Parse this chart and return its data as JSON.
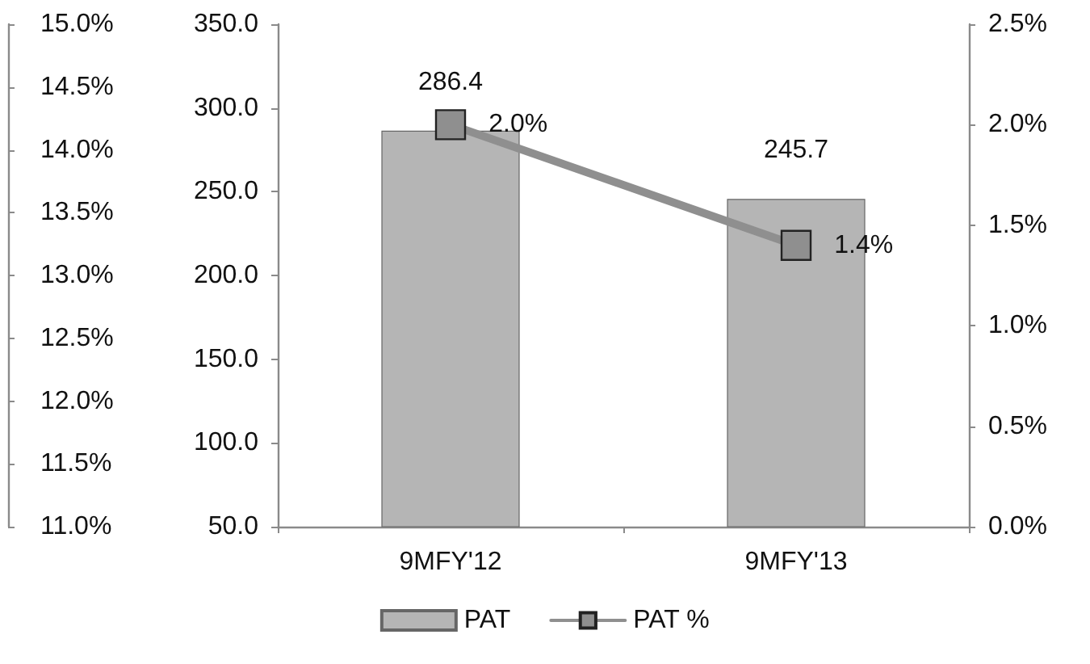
{
  "chart_data": {
    "type": "bar",
    "categories": [
      "9MFY'12",
      "9MFY'13"
    ],
    "series": [
      {
        "name": "PAT",
        "color": "#b5b5b5",
        "values": [
          286.4,
          245.7
        ],
        "value_labels": [
          "286.4",
          "245.7"
        ]
      },
      {
        "name": "PAT %",
        "type": "line",
        "axis": "y2",
        "color": "#8f8f8f",
        "values": [
          2.0,
          1.4
        ],
        "value_labels": [
          "2.0%",
          "1.4%"
        ]
      }
    ],
    "ylim": [
      50,
      350
    ],
    "yticks": [
      {
        "value": 50,
        "label": "50.0"
      },
      {
        "value": 100,
        "label": "100.0"
      },
      {
        "value": 150,
        "label": "150.0"
      },
      {
        "value": 200,
        "label": "200.0"
      },
      {
        "value": 250,
        "label": "250.0"
      },
      {
        "value": 300,
        "label": "300.0"
      },
      {
        "value": 350,
        "label": "350.0"
      }
    ],
    "y2lim": [
      0,
      2.5
    ],
    "y2ticks": [
      {
        "value": 0,
        "label": "0.0%"
      },
      {
        "value": 0.5,
        "label": "0.5%"
      },
      {
        "value": 1,
        "label": "1.0%"
      },
      {
        "value": 1.5,
        "label": "1.5%"
      },
      {
        "value": 2,
        "label": "2.0%"
      },
      {
        "value": 2.5,
        "label": "2.5%"
      }
    ],
    "y3lim": [
      11,
      15
    ],
    "y3ticks": [
      {
        "value": 11,
        "label": "11.0%"
      },
      {
        "value": 11.5,
        "label": "11.5%"
      },
      {
        "value": 12,
        "label": "12.0%"
      },
      {
        "value": 12.5,
        "label": "12.5%"
      },
      {
        "value": 13,
        "label": "13.0%"
      },
      {
        "value": 13.5,
        "label": "13.5%"
      },
      {
        "value": 14,
        "label": "14.0%"
      },
      {
        "value": 14.5,
        "label": "14.5%"
      },
      {
        "value": 15,
        "label": "15.0%"
      }
    ],
    "legend": "bottom",
    "grid": false,
    "marker": "square"
  }
}
